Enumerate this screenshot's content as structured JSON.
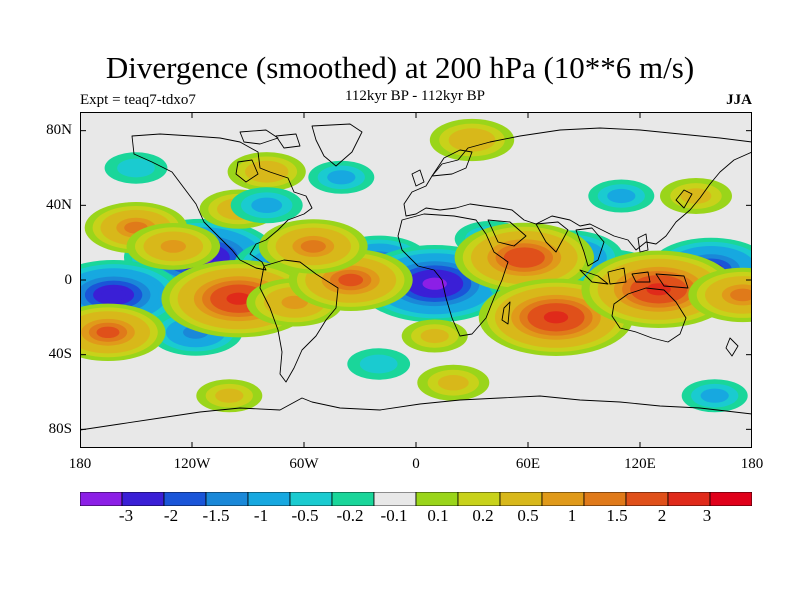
{
  "title": "Divergence (smoothed) at 200 hPa (10**6 m/s)",
  "subtitle_left": "Expt = teaq7-tdxo7",
  "subtitle_center": "112kyr BP - 112kyr BP",
  "subtitle_right": "JJA",
  "y_ticks": [
    "80N",
    "40N",
    "0",
    "40S",
    "80S"
  ],
  "x_ticks": [
    "180",
    "120W",
    "60W",
    "0",
    "60E",
    "120E",
    "180"
  ],
  "colorbar": {
    "colors": [
      "#8c1fe6",
      "#3a1fd6",
      "#1a55d8",
      "#1a88d8",
      "#17a8e0",
      "#1acbd0",
      "#1ad69a",
      "#e8e8e8",
      "#9ad51a",
      "#c8d21a",
      "#d8b81a",
      "#e09a1a",
      "#e07a1a",
      "#e0501a",
      "#e02a1a",
      "#e0001a"
    ],
    "labels": [
      "-3",
      "-2",
      "-1.5",
      "-1",
      "-0.5",
      "-0.2",
      "-0.1",
      "0.1",
      "0.2",
      "0.5",
      "1",
      "1.5",
      "2",
      "3"
    ]
  },
  "chart_data": {
    "type": "heatmap",
    "title": "Divergence (smoothed) at 200 hPa (10**6 m/s)",
    "variable": "Divergence (smoothed)",
    "level": "200 hPa",
    "units": "10**6 m/s",
    "experiment": "teaq7-tdxo7",
    "period": "112kyr BP - 112kyr BP",
    "season": "JJA",
    "lon_range": [
      -180,
      180
    ],
    "lat_range": [
      -90,
      90
    ],
    "levels": [
      -3,
      -2,
      -1.5,
      -1,
      -0.5,
      -0.2,
      -0.1,
      0.1,
      0.2,
      0.5,
      1,
      1.5,
      2,
      3
    ],
    "features": [
      {
        "lon": -115,
        "lat": 12,
        "value": -3.5
      },
      {
        "lon": -162,
        "lat": -8,
        "value": -3
      },
      {
        "lon": -70,
        "lat": 8,
        "value": -1.8
      },
      {
        "lon": -20,
        "lat": 10,
        "value": -1.8
      },
      {
        "lon": 10,
        "lat": -2,
        "value": -3.5
      },
      {
        "lon": 100,
        "lat": -2,
        "value": -3
      },
      {
        "lon": 158,
        "lat": 6,
        "value": -2.5
      },
      {
        "lon": 82,
        "lat": 12,
        "value": -2
      },
      {
        "lon": 64,
        "lat": -2,
        "value": -1.5
      },
      {
        "lon": -118,
        "lat": -28,
        "value": -1.5
      },
      {
        "lon": 40,
        "lat": 22,
        "value": -0.8
      },
      {
        "lon": -150,
        "lat": 28,
        "value": 1.8
      },
      {
        "lon": -130,
        "lat": 18,
        "value": 1.5
      },
      {
        "lon": -165,
        "lat": -28,
        "value": 2.2
      },
      {
        "lon": -95,
        "lat": -10,
        "value": 3.5
      },
      {
        "lon": -65,
        "lat": -12,
        "value": 1.6
      },
      {
        "lon": -35,
        "lat": 0,
        "value": 2.5
      },
      {
        "lon": -55,
        "lat": 18,
        "value": 2.0
      },
      {
        "lon": 58,
        "lat": 12,
        "value": 3.0
      },
      {
        "lon": 75,
        "lat": -20,
        "value": 3.5
      },
      {
        "lon": 130,
        "lat": -5,
        "value": 3.5
      },
      {
        "lon": 175,
        "lat": -8,
        "value": 2.0
      },
      {
        "lon": -95,
        "lat": 38,
        "value": 1.0
      },
      {
        "lon": -80,
        "lat": 58,
        "value": 1.0
      },
      {
        "lon": 30,
        "lat": 75,
        "value": 1.2
      },
      {
        "lon": 150,
        "lat": 45,
        "value": 0.8
      },
      {
        "lon": 10,
        "lat": -30,
        "value": 0.6
      },
      {
        "lon": -80,
        "lat": 40,
        "value": -0.8
      },
      {
        "lon": -40,
        "lat": 55,
        "value": -0.6
      },
      {
        "lon": 110,
        "lat": 45,
        "value": -0.6
      },
      {
        "lon": -150,
        "lat": 60,
        "value": -0.5
      },
      {
        "lon": 20,
        "lat": -55,
        "value": 0.8
      },
      {
        "lon": -100,
        "lat": -62,
        "value": 0.6
      },
      {
        "lon": 160,
        "lat": -62,
        "value": -0.6
      },
      {
        "lon": -20,
        "lat": -45,
        "value": -0.5
      }
    ]
  }
}
